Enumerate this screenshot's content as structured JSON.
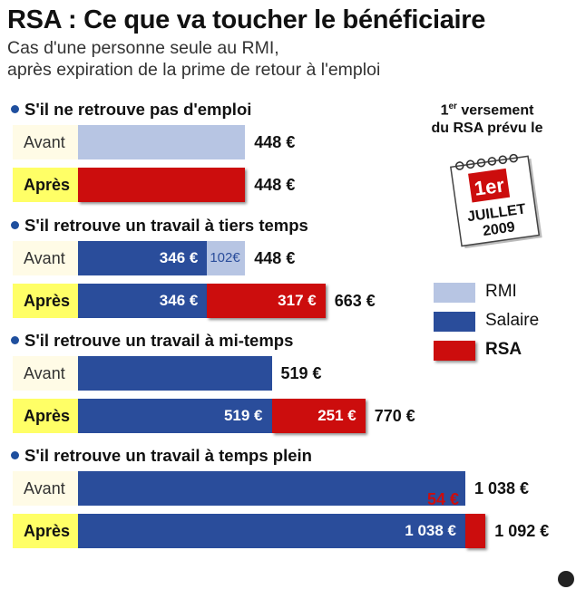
{
  "title": "RSA : Ce que va toucher le bénéficiaire",
  "subtitle_lines": [
    "Cas d'une personne seule au RMI,",
    "après expiration de la prime de retour à l'emploi"
  ],
  "callout": {
    "sup": "er",
    "line1_prefix": "1",
    "line1_suffix": " versement",
    "line2": "du RSA prévu le"
  },
  "calendar": {
    "day": "1er",
    "month": "JUILLET",
    "year": "2009"
  },
  "legend": [
    {
      "label": "RMI",
      "color": "#b7c5e3"
    },
    {
      "label": "Salaire",
      "color": "#2a4d9b"
    },
    {
      "label": "RSA",
      "color": "#cc0d0d"
    }
  ],
  "colors": {
    "avant_bg": "#fffbe6",
    "apres_bg": "#ffff66"
  },
  "chart_data": {
    "type": "bar",
    "orientation": "horizontal",
    "stacked": true,
    "unit": "€",
    "series_order": [
      "Salaire",
      "RMI",
      "RSA"
    ],
    "groups": [
      {
        "title": "S'il ne retrouve pas d'emploi",
        "rows": [
          {
            "label": "Avant",
            "segments": [
              {
                "series": "RMI",
                "value": 448,
                "show": false
              }
            ],
            "total": 448,
            "total_label": "448 €"
          },
          {
            "label": "Après",
            "segments": [
              {
                "series": "RSA",
                "value": 448,
                "show": false
              }
            ],
            "total": 448,
            "total_label": "448 €"
          }
        ]
      },
      {
        "title": "S'il retrouve un travail à tiers temps",
        "rows": [
          {
            "label": "Avant",
            "segments": [
              {
                "series": "Salaire",
                "value": 346,
                "text": "346 €"
              },
              {
                "series": "RMI",
                "value": 102,
                "text": "102€"
              }
            ],
            "total": 448,
            "total_label": "448 €"
          },
          {
            "label": "Après",
            "segments": [
              {
                "series": "Salaire",
                "value": 346,
                "text": "346 €"
              },
              {
                "series": "RSA",
                "value": 317,
                "text": "317 €"
              }
            ],
            "total": 663,
            "total_label": "663 €"
          }
        ]
      },
      {
        "title": "S'il retrouve un travail à mi-temps",
        "rows": [
          {
            "label": "Avant",
            "segments": [
              {
                "series": "Salaire",
                "value": 519,
                "show": false
              }
            ],
            "total": 519,
            "total_label": "519 €"
          },
          {
            "label": "Après",
            "segments": [
              {
                "series": "Salaire",
                "value": 519,
                "text": "519 €"
              },
              {
                "series": "RSA",
                "value": 251,
                "text": "251 €"
              }
            ],
            "total": 770,
            "total_label": "770 €"
          }
        ]
      },
      {
        "title": "S'il retrouve un travail à temps plein",
        "rows": [
          {
            "label": "Avant",
            "segments": [
              {
                "series": "Salaire",
                "value": 1038,
                "show": false
              }
            ],
            "total": 1038,
            "total_label": "1 038 €"
          },
          {
            "label": "Après",
            "segments": [
              {
                "series": "Salaire",
                "value": 1038,
                "text": "1 038 €"
              },
              {
                "series": "RSA",
                "value": 54,
                "text": "54 €",
                "outside": true
              }
            ],
            "total": 1092,
            "total_label": "1 092 €"
          }
        ]
      }
    ]
  }
}
